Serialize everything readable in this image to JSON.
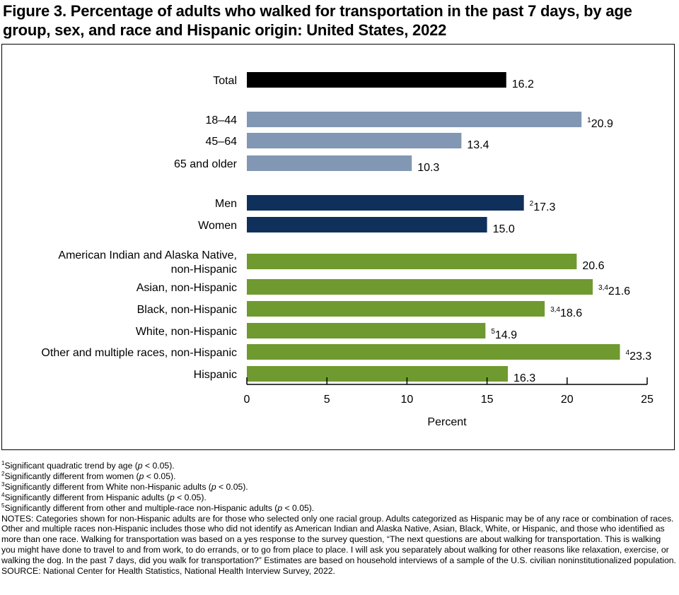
{
  "title": "Figure 3. Percentage of adults who walked for transportation in the past 7 days, by age group, sex, and race and Hispanic origin: United States, 2022",
  "colors": {
    "total": "#000000",
    "age": "#8197b3",
    "sex": "#10305c",
    "race": "#6f9a2f"
  },
  "chart_data": {
    "type": "bar",
    "orientation": "horizontal",
    "title": "Figure 3. Percentage of adults who walked for transportation in the past 7 days, by age group, sex, and race and Hispanic origin: United States, 2022",
    "xlabel": "Percent",
    "ylabel": "",
    "xlim": [
      0,
      25
    ],
    "xticks": [
      0,
      5,
      10,
      15,
      20,
      25
    ],
    "grid": false,
    "bars": [
      {
        "label": "Total",
        "value": 16.2,
        "display": "16.2",
        "sup": "",
        "group": "total"
      },
      {
        "label": "18–44",
        "value": 20.9,
        "display": "20.9",
        "sup": "1",
        "group": "age"
      },
      {
        "label": "45–64",
        "value": 13.4,
        "display": "13.4",
        "sup": "",
        "group": "age"
      },
      {
        "label": "65 and older",
        "value": 10.3,
        "display": "10.3",
        "sup": "",
        "group": "age"
      },
      {
        "label": "Men",
        "value": 17.3,
        "display": "17.3",
        "sup": "2",
        "group": "sex"
      },
      {
        "label": "Women",
        "value": 15.0,
        "display": "15.0",
        "sup": "",
        "group": "sex"
      },
      {
        "label": [
          "American Indian and Alaska Native,",
          "non-Hispanic"
        ],
        "value": 20.6,
        "display": "20.6",
        "sup": "",
        "group": "race"
      },
      {
        "label": "Asian, non-Hispanic",
        "value": 21.6,
        "display": "21.6",
        "sup": "3,4",
        "group": "race"
      },
      {
        "label": "Black, non-Hispanic",
        "value": 18.6,
        "display": "18.6",
        "sup": "3,4",
        "group": "race"
      },
      {
        "label": "White, non-Hispanic",
        "value": 14.9,
        "display": "14.9",
        "sup": "5",
        "group": "race"
      },
      {
        "label": "Other and multiple races, non-Hispanic",
        "value": 23.3,
        "display": "23.3",
        "sup": "4",
        "group": "race"
      },
      {
        "label": "Hispanic",
        "value": 16.3,
        "display": "16.3",
        "sup": "",
        "group": "race"
      }
    ]
  },
  "footnotes": {
    "f1": {
      "sup": "1",
      "pre": "Significant quadratic trend by age (",
      "p": "p",
      "post": " < 0.05)."
    },
    "f2": {
      "sup": "2",
      "pre": "Significantly different from women (",
      "p": "p",
      "post": " < 0.05)."
    },
    "f3": {
      "sup": "3",
      "pre": "Significantly different from White non-Hispanic adults (",
      "p": "p",
      "post": " < 0.05)."
    },
    "f4": {
      "sup": "4",
      "pre": "Significantly different from Hispanic adults (",
      "p": "p",
      "post": " < 0.05)."
    },
    "f5": {
      "sup": "5",
      "pre": "Significantly different from other and multiple-race non-Hispanic adults (",
      "p": "p",
      "post": " < 0.05)."
    },
    "notes": "NOTES: Categories shown for non-Hispanic adults are for those who selected only one racial group. Adults categorized as Hispanic may be of any race or combination of races. Other and multiple races non-Hispanic includes those who did not identify as American Indian and Alaska Native, Asian, Black, White, or Hispanic, and those who identified as more than one race. Walking for transportation was based on a yes response to the survey question, “The next questions are about walking for transportation. This is walking you might have done to travel to and from work, to do errands, or to go from place to place. I will ask you separately about walking for other reasons like relaxation, exercise, or walking the dog. In the past 7 days, did you walk for transportation?” Estimates are based on household interviews of a sample of the U.S. civilian noninstitutionalized population.",
    "source": "SOURCE: National Center for Health Statistics, National Health Interview Survey, 2022."
  }
}
